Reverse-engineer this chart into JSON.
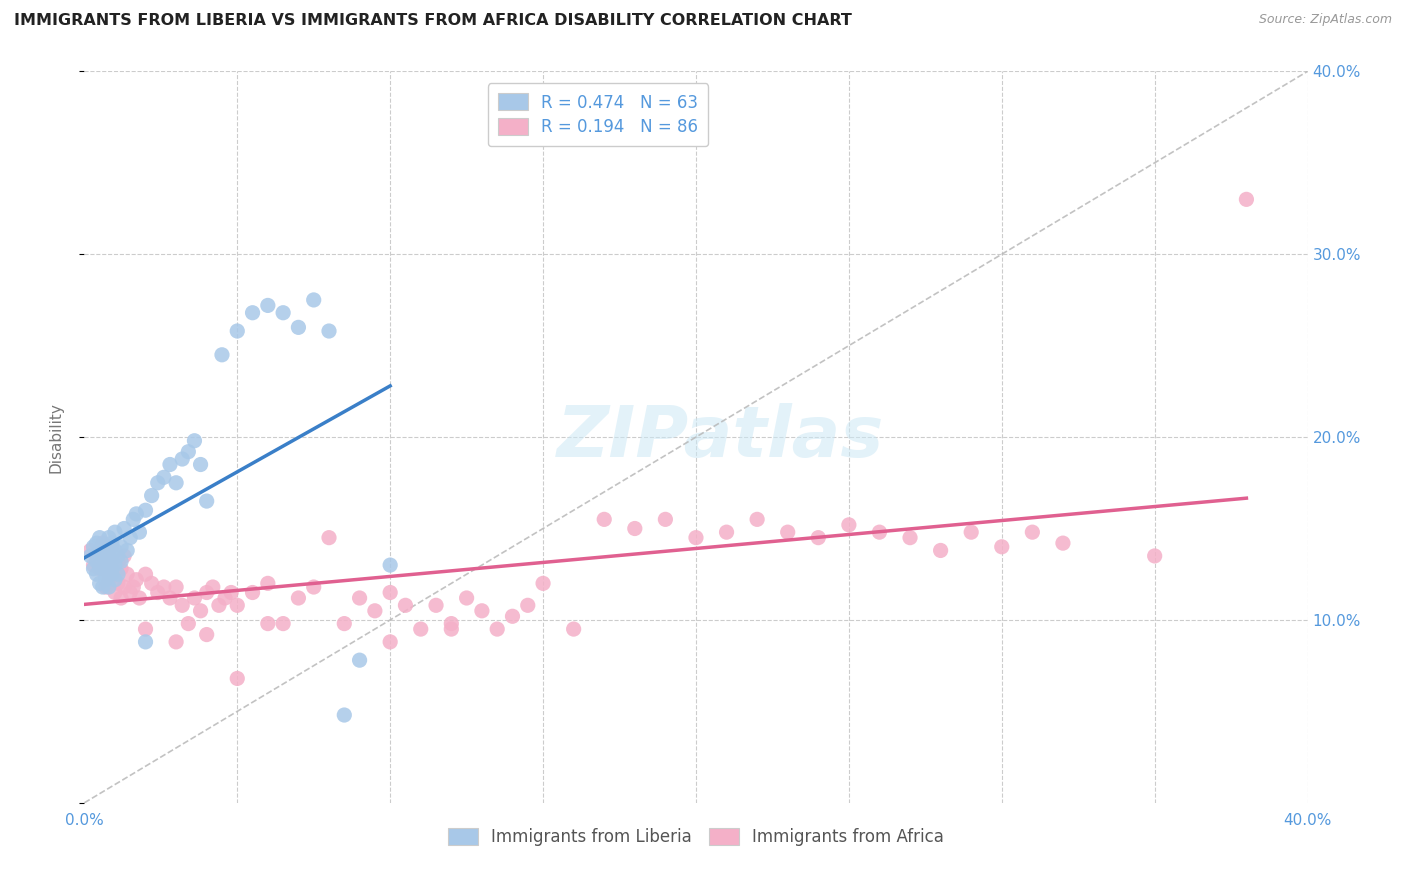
{
  "title": "IMMIGRANTS FROM LIBERIA VS IMMIGRANTS FROM AFRICA DISABILITY CORRELATION CHART",
  "source": "Source: ZipAtlas.com",
  "ylabel": "Disability",
  "xlim": [
    0.0,
    0.4
  ],
  "ylim": [
    0.0,
    0.4
  ],
  "liberia_R": 0.474,
  "liberia_N": 63,
  "africa_R": 0.194,
  "africa_N": 86,
  "liberia_color": "#a8c8e8",
  "africa_color": "#f4b0c8",
  "liberia_line_color": "#3a7fc8",
  "africa_line_color": "#e06090",
  "trend_line_color": "#b8b8b8",
  "background_color": "#ffffff",
  "tick_color": "#5599dd",
  "liberia_scatter_x": [
    0.002,
    0.003,
    0.003,
    0.004,
    0.004,
    0.004,
    0.005,
    0.005,
    0.005,
    0.005,
    0.006,
    0.006,
    0.006,
    0.006,
    0.007,
    0.007,
    0.007,
    0.007,
    0.008,
    0.008,
    0.008,
    0.008,
    0.009,
    0.009,
    0.009,
    0.009,
    0.01,
    0.01,
    0.01,
    0.01,
    0.011,
    0.011,
    0.012,
    0.012,
    0.013,
    0.014,
    0.015,
    0.016,
    0.017,
    0.018,
    0.02,
    0.022,
    0.024,
    0.026,
    0.028,
    0.03,
    0.032,
    0.034,
    0.036,
    0.038,
    0.04,
    0.045,
    0.05,
    0.055,
    0.06,
    0.065,
    0.07,
    0.075,
    0.08,
    0.085,
    0.09,
    0.1,
    0.02
  ],
  "liberia_scatter_y": [
    0.135,
    0.14,
    0.128,
    0.132,
    0.125,
    0.142,
    0.138,
    0.13,
    0.12,
    0.145,
    0.135,
    0.128,
    0.14,
    0.118,
    0.132,
    0.125,
    0.138,
    0.122,
    0.14,
    0.13,
    0.145,
    0.118,
    0.135,
    0.125,
    0.142,
    0.128,
    0.138,
    0.13,
    0.122,
    0.148,
    0.135,
    0.125,
    0.14,
    0.132,
    0.15,
    0.138,
    0.145,
    0.155,
    0.158,
    0.148,
    0.16,
    0.168,
    0.175,
    0.178,
    0.185,
    0.175,
    0.188,
    0.192,
    0.198,
    0.185,
    0.165,
    0.245,
    0.258,
    0.268,
    0.272,
    0.268,
    0.26,
    0.275,
    0.258,
    0.048,
    0.078,
    0.13,
    0.088
  ],
  "africa_scatter_x": [
    0.002,
    0.003,
    0.004,
    0.005,
    0.006,
    0.007,
    0.007,
    0.008,
    0.008,
    0.009,
    0.009,
    0.01,
    0.01,
    0.011,
    0.011,
    0.012,
    0.012,
    0.013,
    0.013,
    0.014,
    0.015,
    0.016,
    0.017,
    0.018,
    0.02,
    0.022,
    0.024,
    0.026,
    0.028,
    0.03,
    0.032,
    0.034,
    0.036,
    0.038,
    0.04,
    0.042,
    0.044,
    0.046,
    0.048,
    0.05,
    0.055,
    0.06,
    0.065,
    0.07,
    0.075,
    0.08,
    0.085,
    0.09,
    0.095,
    0.1,
    0.105,
    0.11,
    0.115,
    0.12,
    0.125,
    0.13,
    0.135,
    0.14,
    0.145,
    0.15,
    0.16,
    0.17,
    0.18,
    0.19,
    0.2,
    0.21,
    0.22,
    0.23,
    0.24,
    0.25,
    0.26,
    0.27,
    0.28,
    0.29,
    0.3,
    0.31,
    0.32,
    0.35,
    0.02,
    0.03,
    0.04,
    0.05,
    0.06,
    0.1,
    0.12,
    0.38
  ],
  "africa_scatter_y": [
    0.138,
    0.13,
    0.135,
    0.128,
    0.142,
    0.132,
    0.118,
    0.135,
    0.122,
    0.128,
    0.14,
    0.125,
    0.115,
    0.132,
    0.12,
    0.128,
    0.112,
    0.135,
    0.118,
    0.125,
    0.115,
    0.118,
    0.122,
    0.112,
    0.125,
    0.12,
    0.115,
    0.118,
    0.112,
    0.118,
    0.108,
    0.098,
    0.112,
    0.105,
    0.115,
    0.118,
    0.108,
    0.112,
    0.115,
    0.108,
    0.115,
    0.12,
    0.098,
    0.112,
    0.118,
    0.145,
    0.098,
    0.112,
    0.105,
    0.115,
    0.108,
    0.095,
    0.108,
    0.098,
    0.112,
    0.105,
    0.095,
    0.102,
    0.108,
    0.12,
    0.095,
    0.155,
    0.15,
    0.155,
    0.145,
    0.148,
    0.155,
    0.148,
    0.145,
    0.152,
    0.148,
    0.145,
    0.138,
    0.148,
    0.14,
    0.148,
    0.142,
    0.135,
    0.095,
    0.088,
    0.092,
    0.068,
    0.098,
    0.088,
    0.095,
    0.33
  ]
}
